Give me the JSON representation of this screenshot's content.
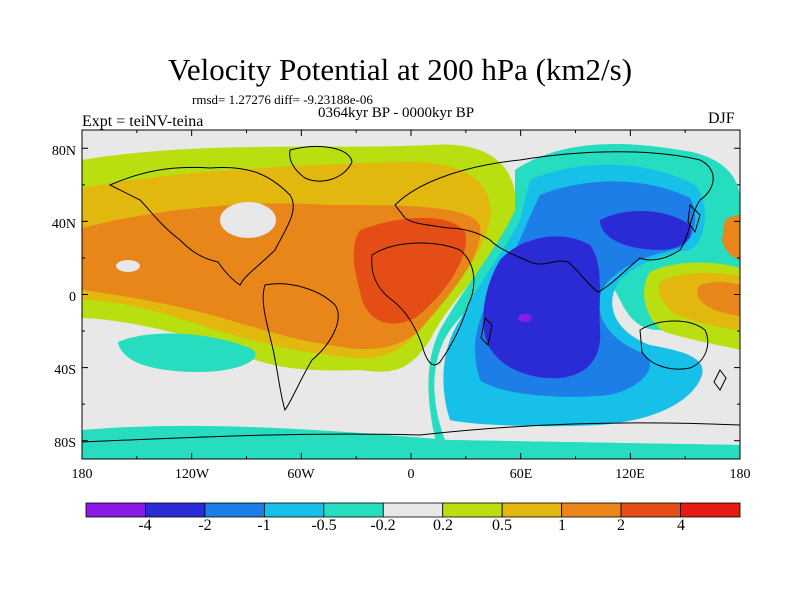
{
  "header": {
    "title": "Velocity Potential at 200 hPa (km2/s)",
    "stats": "rmsd= 1.27276 diff= -9.23188e-06",
    "period": "0364kyr BP - 0000kyr BP",
    "experiment": "Expt = teiNV-teina",
    "season": "DJF"
  },
  "map": {
    "projection": "cylindrical-equidistant",
    "lon_range": [
      -180,
      180
    ],
    "lat_range": [
      -90,
      90
    ],
    "x_ticks": [
      "180",
      "120W",
      "60W",
      "0",
      "60E",
      "120E",
      "180"
    ],
    "y_ticks": [
      "80N",
      "40N",
      "0",
      "40S",
      "80S"
    ]
  },
  "colorbar": {
    "labels": [
      "-4",
      "-2",
      "-1",
      "-0.5",
      "-0.2",
      "0.2",
      "0.5",
      "1",
      "2",
      "4"
    ],
    "colors": [
      "#8b1ae6",
      "#2b2bd6",
      "#1e7ee8",
      "#16c0e8",
      "#26ddc0",
      "#e8e8e8",
      "#b9df10",
      "#e2b80e",
      "#e8861a",
      "#e44e16",
      "#e61a12"
    ]
  }
}
